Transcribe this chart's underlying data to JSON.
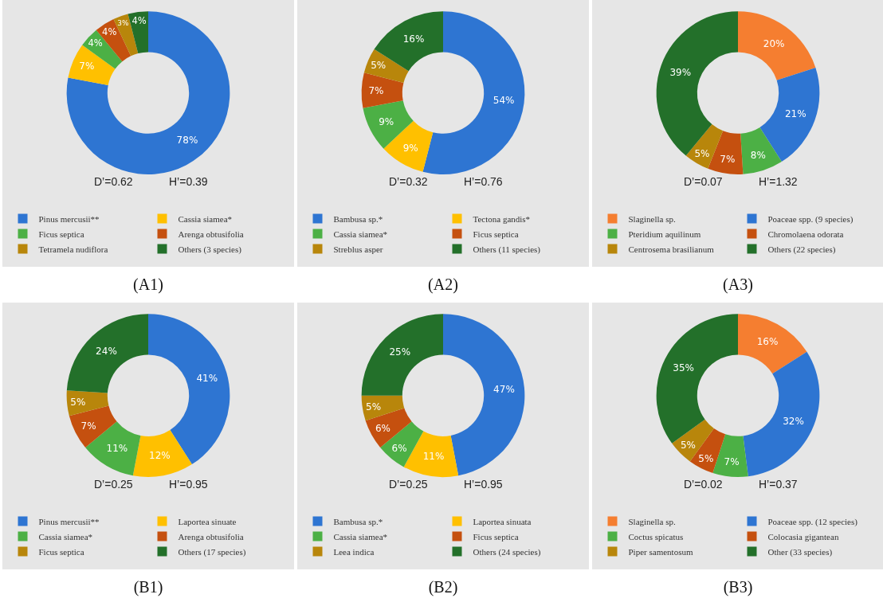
{
  "chart_data": [
    {
      "type": "donut",
      "title": "(A1)",
      "annotations": [
        "D’=0.62",
        "H’=0.39"
      ],
      "legend": "bottom",
      "categories": [
        "Pinus mercusii**",
        "Cassia siamea*",
        "Ficus septica",
        "Arenga obtusifolia",
        "Tetramela nudiflora",
        "Others (3 species)"
      ],
      "values": [
        78,
        7,
        4,
        4,
        3,
        4
      ],
      "colors": [
        "#2e75d2",
        "#ffc000",
        "#4cb045",
        "#c5500f",
        "#b8860b",
        "#23702a"
      ],
      "value_labels": [
        "78%",
        "7%",
        "4%",
        "4%",
        "3%",
        "4%"
      ]
    },
    {
      "type": "donut",
      "title": "(A2)",
      "annotations": [
        "D’=0.32",
        "H’=0.76"
      ],
      "legend": "bottom",
      "categories": [
        "Bambusa sp.*",
        "Tectona gandis*",
        "Cassia siamea*",
        "Ficus septica",
        "Streblus asper",
        "Others (11 species)"
      ],
      "values": [
        54,
        9,
        9,
        7,
        5,
        16
      ],
      "colors": [
        "#2e75d2",
        "#ffc000",
        "#4cb045",
        "#c5500f",
        "#b8860b",
        "#23702a"
      ],
      "value_labels": [
        "54%",
        "9%",
        "9%",
        "7%",
        "5%",
        "16%"
      ]
    },
    {
      "type": "donut",
      "title": "(A3)",
      "annotations": [
        "D’=0.07",
        "H’=1.32"
      ],
      "legend": "bottom",
      "categories": [
        "Slaginella sp.",
        "Poaceae spp. (9 species)",
        "Pteridium aquilinum",
        "Chromolaena odorata",
        "Centrosema brasilianum",
        "Others (22 species)"
      ],
      "values": [
        20,
        21,
        8,
        7,
        5,
        39
      ],
      "colors": [
        "#f57e30",
        "#2e75d2",
        "#4cb045",
        "#c5500f",
        "#b8860b",
        "#23702a"
      ],
      "value_labels": [
        "20%",
        "21%",
        "8%",
        "7%",
        "5%",
        "39%"
      ]
    },
    {
      "type": "donut",
      "title": "(B1)",
      "annotations": [
        "D’=0.25",
        "H’=0.95"
      ],
      "legend": "bottom",
      "categories": [
        "Pinus mercusii**",
        "Laportea sinuate",
        "Cassia siamea*",
        "Arenga obtusifolia",
        "Ficus septica",
        "Others (17 species)"
      ],
      "values": [
        41,
        12,
        11,
        7,
        5,
        24
      ],
      "colors": [
        "#2e75d2",
        "#ffc000",
        "#4cb045",
        "#c5500f",
        "#b8860b",
        "#23702a"
      ],
      "value_labels": [
        "41%",
        "12%",
        "11%",
        "7%",
        "5%",
        "24%"
      ]
    },
    {
      "type": "donut",
      "title": "(B2)",
      "annotations": [
        "D’=0.25",
        "H’=0.95"
      ],
      "legend": "bottom",
      "categories": [
        "Bambusa sp.*",
        "Laportea sinuata",
        "Cassia siamea*",
        "Ficus septica",
        "Leea indica",
        "Others (24 species)"
      ],
      "values": [
        47,
        11,
        6,
        6,
        5,
        25
      ],
      "colors": [
        "#2e75d2",
        "#ffc000",
        "#4cb045",
        "#c5500f",
        "#b8860b",
        "#23702a"
      ],
      "value_labels": [
        "47%",
        "11%",
        "6%",
        "6%",
        "5%",
        "25%"
      ]
    },
    {
      "type": "donut",
      "title": "(B3)",
      "annotations": [
        "D’=0.02",
        "H’=0.37"
      ],
      "legend": "bottom",
      "categories": [
        "Slaginella sp.",
        "Poaceae spp. (12 species)",
        "Coctus spicatus",
        "Colocasia gigantean",
        "Piper samentosum",
        "Other (33 species)"
      ],
      "values": [
        16,
        32,
        7,
        5,
        5,
        35
      ],
      "colors": [
        "#f57e30",
        "#2e75d2",
        "#4cb045",
        "#c5500f",
        "#b8860b",
        "#23702a"
      ],
      "value_labels": [
        "16%",
        "32%",
        "7%",
        "5%",
        "5%",
        "35%"
      ]
    }
  ]
}
